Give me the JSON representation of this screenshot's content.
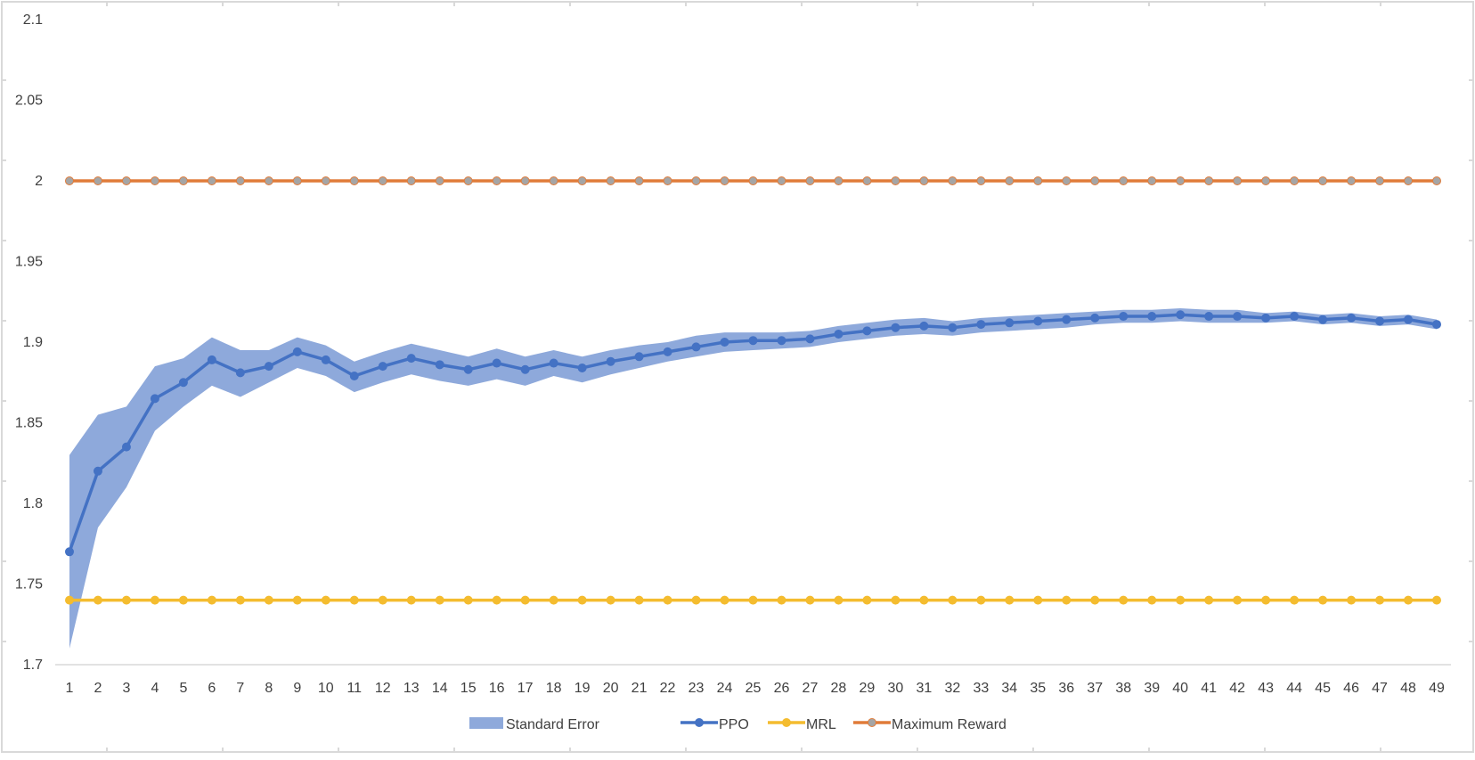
{
  "chart_data": {
    "type": "line",
    "title": "",
    "xlabel": "",
    "ylabel": "",
    "x": [
      1,
      2,
      3,
      4,
      5,
      6,
      7,
      8,
      9,
      10,
      11,
      12,
      13,
      14,
      15,
      16,
      17,
      18,
      19,
      20,
      21,
      22,
      23,
      24,
      25,
      26,
      27,
      28,
      29,
      30,
      31,
      32,
      33,
      34,
      35,
      36,
      37,
      38,
      39,
      40,
      41,
      42,
      43,
      44,
      45,
      46,
      47,
      48,
      49
    ],
    "ylim": [
      1.7,
      2.1
    ],
    "yticks": [
      "1.7",
      "1.75",
      "1.8",
      "1.85",
      "1.9",
      "1.95",
      "2",
      "2.05",
      "2.1"
    ],
    "grid": false,
    "legend": "bottom",
    "series": [
      {
        "name": "PPO",
        "color": "#4472C4",
        "values": [
          1.77,
          1.82,
          1.835,
          1.865,
          1.875,
          1.889,
          1.881,
          1.885,
          1.894,
          1.889,
          1.879,
          1.885,
          1.89,
          1.886,
          1.883,
          1.887,
          1.883,
          1.887,
          1.884,
          1.888,
          1.891,
          1.894,
          1.897,
          1.9,
          1.901,
          1.901,
          1.902,
          1.905,
          1.907,
          1.909,
          1.91,
          1.909,
          1.911,
          1.912,
          1.913,
          1.914,
          1.915,
          1.916,
          1.916,
          1.917,
          1.916,
          1.916,
          1.915,
          1.916,
          1.914,
          1.915,
          1.913,
          1.914,
          1.911
        ],
        "upper": [
          1.83,
          1.855,
          1.86,
          1.885,
          1.89,
          1.903,
          1.895,
          1.895,
          1.903,
          1.898,
          1.888,
          1.894,
          1.899,
          1.895,
          1.891,
          1.896,
          1.891,
          1.895,
          1.891,
          1.895,
          1.898,
          1.9,
          1.904,
          1.906,
          1.906,
          1.906,
          1.907,
          1.91,
          1.912,
          1.914,
          1.915,
          1.913,
          1.915,
          1.916,
          1.917,
          1.918,
          1.919,
          1.92,
          1.92,
          1.921,
          1.92,
          1.92,
          1.918,
          1.919,
          1.917,
          1.918,
          1.916,
          1.917,
          1.914
        ],
        "lower": [
          1.71,
          1.785,
          1.81,
          1.845,
          1.86,
          1.873,
          1.866,
          1.875,
          1.884,
          1.879,
          1.869,
          1.875,
          1.88,
          1.876,
          1.873,
          1.877,
          1.873,
          1.879,
          1.875,
          1.88,
          1.884,
          1.888,
          1.891,
          1.894,
          1.895,
          1.896,
          1.897,
          1.9,
          1.902,
          1.904,
          1.905,
          1.904,
          1.906,
          1.907,
          1.908,
          1.909,
          1.911,
          1.912,
          1.912,
          1.913,
          1.912,
          1.912,
          1.912,
          1.913,
          1.911,
          1.912,
          1.91,
          1.911,
          1.908
        ]
      },
      {
        "name": "MRL",
        "color": "#F4BC2F",
        "values": [
          1.74,
          1.74,
          1.74,
          1.74,
          1.74,
          1.74,
          1.74,
          1.74,
          1.74,
          1.74,
          1.74,
          1.74,
          1.74,
          1.74,
          1.74,
          1.74,
          1.74,
          1.74,
          1.74,
          1.74,
          1.74,
          1.74,
          1.74,
          1.74,
          1.74,
          1.74,
          1.74,
          1.74,
          1.74,
          1.74,
          1.74,
          1.74,
          1.74,
          1.74,
          1.74,
          1.74,
          1.74,
          1.74,
          1.74,
          1.74,
          1.74,
          1.74,
          1.74,
          1.74,
          1.74,
          1.74,
          1.74,
          1.74,
          1.74
        ]
      },
      {
        "name": "Maximum Reward",
        "color": "#E07B39",
        "marker_color": "#A5A5A5",
        "values": [
          2,
          2,
          2,
          2,
          2,
          2,
          2,
          2,
          2,
          2,
          2,
          2,
          2,
          2,
          2,
          2,
          2,
          2,
          2,
          2,
          2,
          2,
          2,
          2,
          2,
          2,
          2,
          2,
          2,
          2,
          2,
          2,
          2,
          2,
          2,
          2,
          2,
          2,
          2,
          2,
          2,
          2,
          2,
          2,
          2,
          2,
          2,
          2,
          2
        ]
      }
    ],
    "band_legend": "Standard Error",
    "band_color": "#8EA9DB",
    "axis_color": "#D9D9D9",
    "text_color": "#404040"
  }
}
